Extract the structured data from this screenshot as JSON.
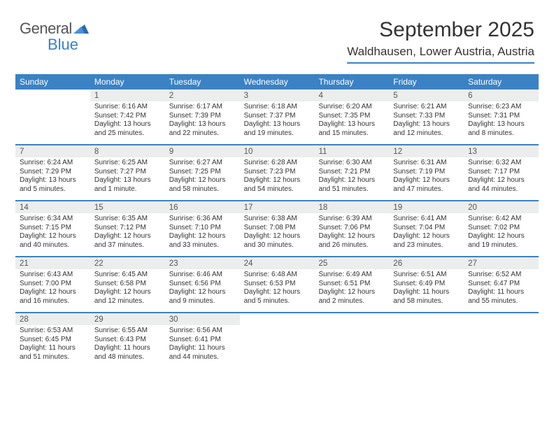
{
  "brand": {
    "line1": "General",
    "line2": "Blue"
  },
  "title": "September 2025",
  "location": "Waldhausen, Lower Austria, Austria",
  "colors": {
    "accent": "#3b82c4",
    "dayhead_bg": "#3b82c4",
    "dayhead_text": "#ffffff",
    "daynum_bg": "#eceded",
    "text": "#333333",
    "background": "#ffffff"
  },
  "day_labels": [
    "Sunday",
    "Monday",
    "Tuesday",
    "Wednesday",
    "Thursday",
    "Friday",
    "Saturday"
  ],
  "weeks": [
    [
      {
        "n": "",
        "sunrise": "",
        "sunset": "",
        "daylight": ""
      },
      {
        "n": "1",
        "sunrise": "Sunrise: 6:16 AM",
        "sunset": "Sunset: 7:42 PM",
        "daylight": "Daylight: 13 hours and 25 minutes."
      },
      {
        "n": "2",
        "sunrise": "Sunrise: 6:17 AM",
        "sunset": "Sunset: 7:39 PM",
        "daylight": "Daylight: 13 hours and 22 minutes."
      },
      {
        "n": "3",
        "sunrise": "Sunrise: 6:18 AM",
        "sunset": "Sunset: 7:37 PM",
        "daylight": "Daylight: 13 hours and 19 minutes."
      },
      {
        "n": "4",
        "sunrise": "Sunrise: 6:20 AM",
        "sunset": "Sunset: 7:35 PM",
        "daylight": "Daylight: 13 hours and 15 minutes."
      },
      {
        "n": "5",
        "sunrise": "Sunrise: 6:21 AM",
        "sunset": "Sunset: 7:33 PM",
        "daylight": "Daylight: 13 hours and 12 minutes."
      },
      {
        "n": "6",
        "sunrise": "Sunrise: 6:23 AM",
        "sunset": "Sunset: 7:31 PM",
        "daylight": "Daylight: 13 hours and 8 minutes."
      }
    ],
    [
      {
        "n": "7",
        "sunrise": "Sunrise: 6:24 AM",
        "sunset": "Sunset: 7:29 PM",
        "daylight": "Daylight: 13 hours and 5 minutes."
      },
      {
        "n": "8",
        "sunrise": "Sunrise: 6:25 AM",
        "sunset": "Sunset: 7:27 PM",
        "daylight": "Daylight: 13 hours and 1 minute."
      },
      {
        "n": "9",
        "sunrise": "Sunrise: 6:27 AM",
        "sunset": "Sunset: 7:25 PM",
        "daylight": "Daylight: 12 hours and 58 minutes."
      },
      {
        "n": "10",
        "sunrise": "Sunrise: 6:28 AM",
        "sunset": "Sunset: 7:23 PM",
        "daylight": "Daylight: 12 hours and 54 minutes."
      },
      {
        "n": "11",
        "sunrise": "Sunrise: 6:30 AM",
        "sunset": "Sunset: 7:21 PM",
        "daylight": "Daylight: 12 hours and 51 minutes."
      },
      {
        "n": "12",
        "sunrise": "Sunrise: 6:31 AM",
        "sunset": "Sunset: 7:19 PM",
        "daylight": "Daylight: 12 hours and 47 minutes."
      },
      {
        "n": "13",
        "sunrise": "Sunrise: 6:32 AM",
        "sunset": "Sunset: 7:17 PM",
        "daylight": "Daylight: 12 hours and 44 minutes."
      }
    ],
    [
      {
        "n": "14",
        "sunrise": "Sunrise: 6:34 AM",
        "sunset": "Sunset: 7:15 PM",
        "daylight": "Daylight: 12 hours and 40 minutes."
      },
      {
        "n": "15",
        "sunrise": "Sunrise: 6:35 AM",
        "sunset": "Sunset: 7:12 PM",
        "daylight": "Daylight: 12 hours and 37 minutes."
      },
      {
        "n": "16",
        "sunrise": "Sunrise: 6:36 AM",
        "sunset": "Sunset: 7:10 PM",
        "daylight": "Daylight: 12 hours and 33 minutes."
      },
      {
        "n": "17",
        "sunrise": "Sunrise: 6:38 AM",
        "sunset": "Sunset: 7:08 PM",
        "daylight": "Daylight: 12 hours and 30 minutes."
      },
      {
        "n": "18",
        "sunrise": "Sunrise: 6:39 AM",
        "sunset": "Sunset: 7:06 PM",
        "daylight": "Daylight: 12 hours and 26 minutes."
      },
      {
        "n": "19",
        "sunrise": "Sunrise: 6:41 AM",
        "sunset": "Sunset: 7:04 PM",
        "daylight": "Daylight: 12 hours and 23 minutes."
      },
      {
        "n": "20",
        "sunrise": "Sunrise: 6:42 AM",
        "sunset": "Sunset: 7:02 PM",
        "daylight": "Daylight: 12 hours and 19 minutes."
      }
    ],
    [
      {
        "n": "21",
        "sunrise": "Sunrise: 6:43 AM",
        "sunset": "Sunset: 7:00 PM",
        "daylight": "Daylight: 12 hours and 16 minutes."
      },
      {
        "n": "22",
        "sunrise": "Sunrise: 6:45 AM",
        "sunset": "Sunset: 6:58 PM",
        "daylight": "Daylight: 12 hours and 12 minutes."
      },
      {
        "n": "23",
        "sunrise": "Sunrise: 6:46 AM",
        "sunset": "Sunset: 6:56 PM",
        "daylight": "Daylight: 12 hours and 9 minutes."
      },
      {
        "n": "24",
        "sunrise": "Sunrise: 6:48 AM",
        "sunset": "Sunset: 6:53 PM",
        "daylight": "Daylight: 12 hours and 5 minutes."
      },
      {
        "n": "25",
        "sunrise": "Sunrise: 6:49 AM",
        "sunset": "Sunset: 6:51 PM",
        "daylight": "Daylight: 12 hours and 2 minutes."
      },
      {
        "n": "26",
        "sunrise": "Sunrise: 6:51 AM",
        "sunset": "Sunset: 6:49 PM",
        "daylight": "Daylight: 11 hours and 58 minutes."
      },
      {
        "n": "27",
        "sunrise": "Sunrise: 6:52 AM",
        "sunset": "Sunset: 6:47 PM",
        "daylight": "Daylight: 11 hours and 55 minutes."
      }
    ],
    [
      {
        "n": "28",
        "sunrise": "Sunrise: 6:53 AM",
        "sunset": "Sunset: 6:45 PM",
        "daylight": "Daylight: 11 hours and 51 minutes."
      },
      {
        "n": "29",
        "sunrise": "Sunrise: 6:55 AM",
        "sunset": "Sunset: 6:43 PM",
        "daylight": "Daylight: 11 hours and 48 minutes."
      },
      {
        "n": "30",
        "sunrise": "Sunrise: 6:56 AM",
        "sunset": "Sunset: 6:41 PM",
        "daylight": "Daylight: 11 hours and 44 minutes."
      },
      {
        "n": "",
        "sunrise": "",
        "sunset": "",
        "daylight": ""
      },
      {
        "n": "",
        "sunrise": "",
        "sunset": "",
        "daylight": ""
      },
      {
        "n": "",
        "sunrise": "",
        "sunset": "",
        "daylight": ""
      },
      {
        "n": "",
        "sunrise": "",
        "sunset": "",
        "daylight": ""
      }
    ]
  ]
}
